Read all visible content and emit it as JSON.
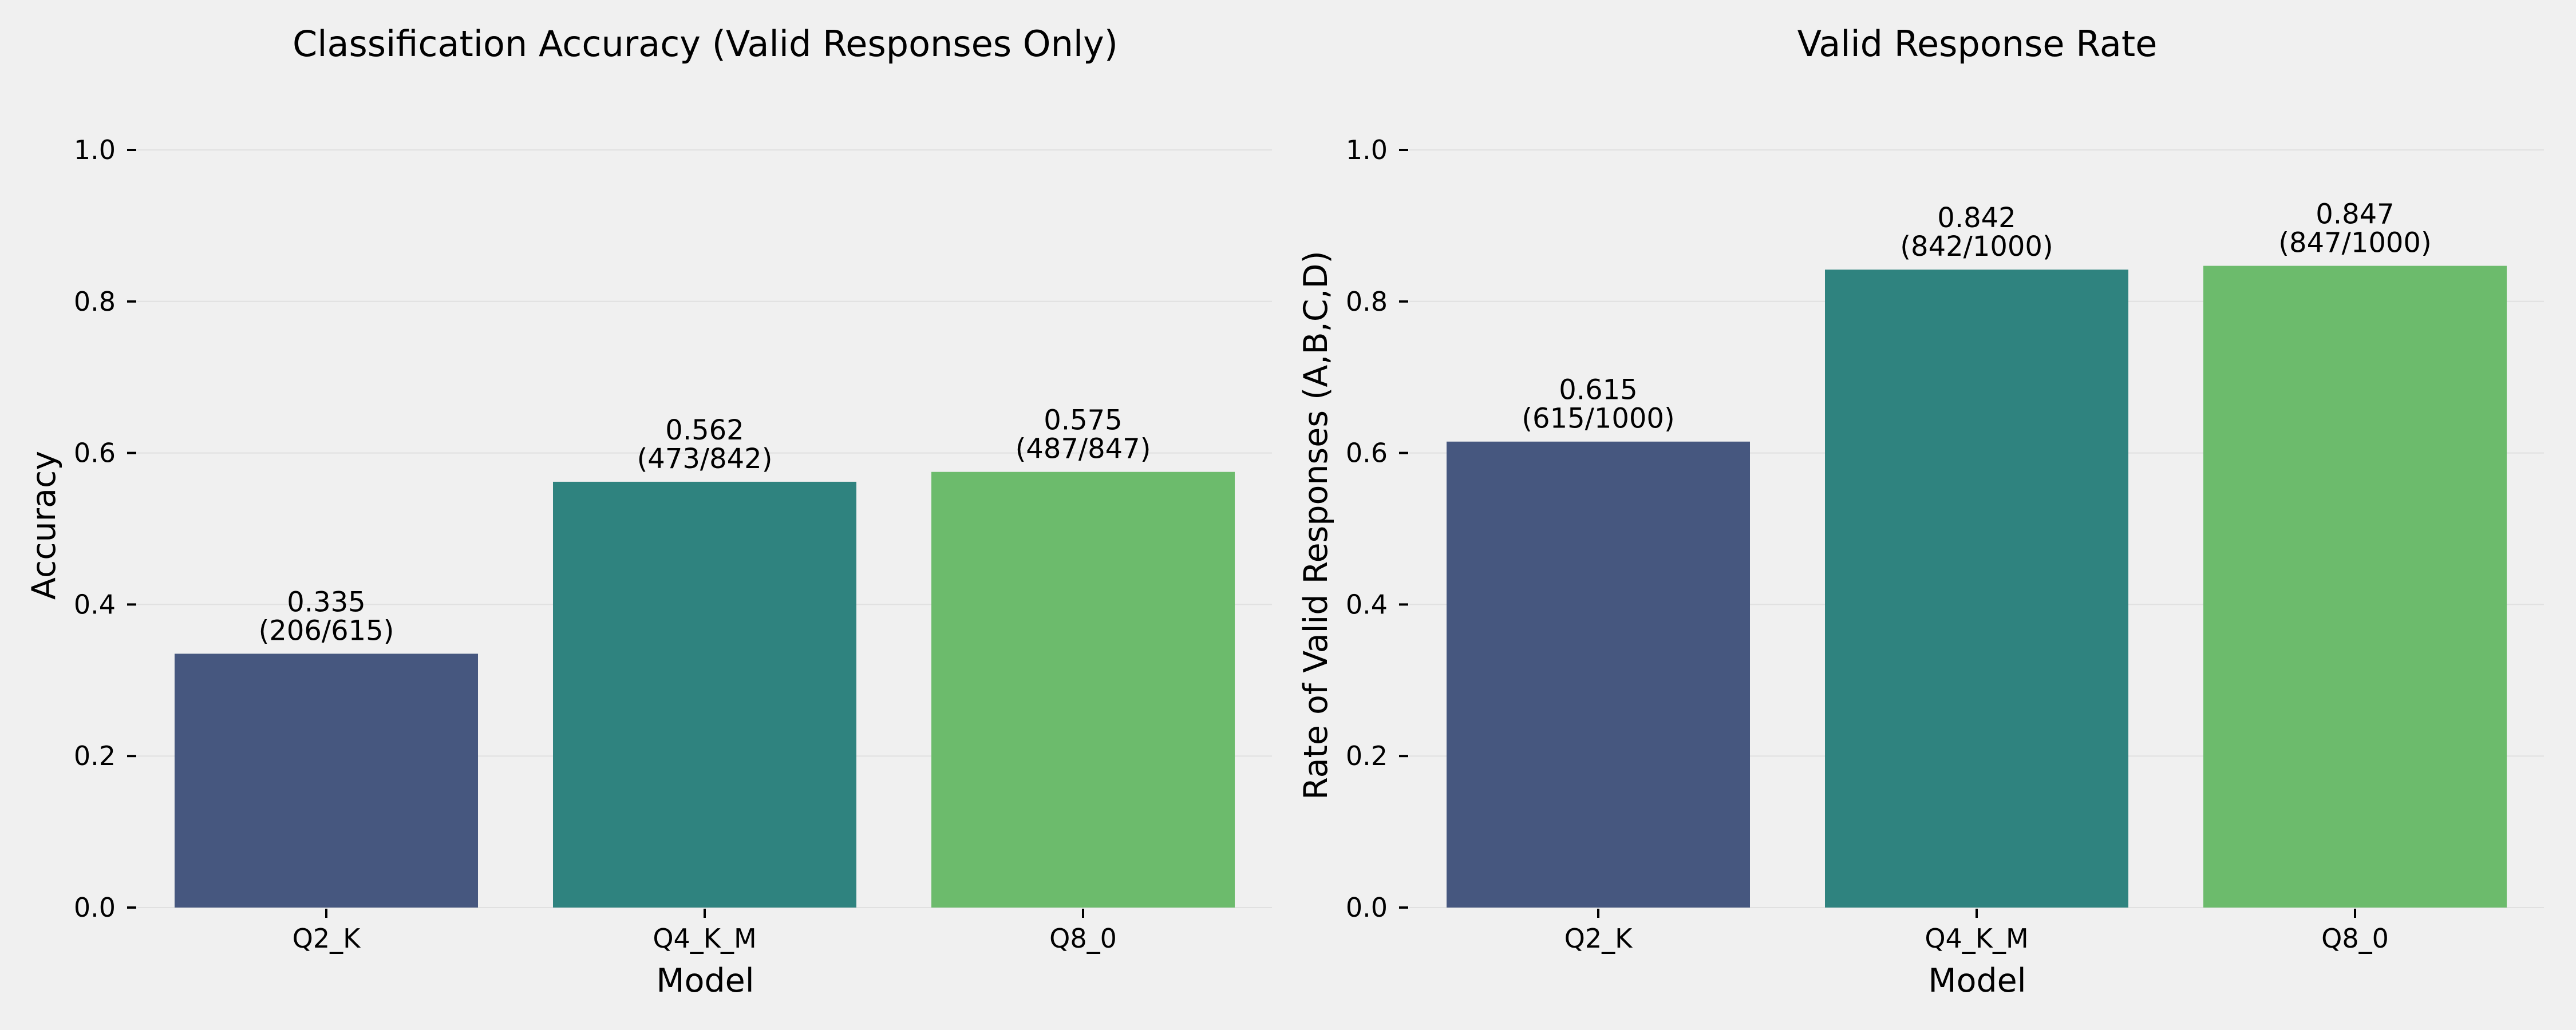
{
  "figure": {
    "background": "#f0f0f0",
    "grid": true,
    "grid_color": "#e0e0e0"
  },
  "chart_data": [
    {
      "type": "bar",
      "title": "Classification Accuracy (Valid Responses Only)",
      "xlabel": "Model",
      "ylabel": "Accuracy",
      "categories": [
        "Q2_K",
        "Q4_K_M",
        "Q8_0"
      ],
      "values": [
        0.335,
        0.562,
        0.575
      ],
      "value_labels": [
        "0.335",
        "0.562",
        "0.575"
      ],
      "count_labels": [
        "(206/615)",
        "(473/842)",
        "(487/847)"
      ],
      "colors": [
        "#46577f",
        "#2f837f",
        "#6cbb6c"
      ],
      "ylim": [
        0,
        1.0
      ],
      "yticks": [
        0.0,
        0.2,
        0.4,
        0.6,
        0.8,
        1.0
      ],
      "ytick_labels": [
        "0.0",
        "0.2",
        "0.4",
        "0.6",
        "0.8",
        "1.0"
      ],
      "grid": true,
      "legend": "none"
    },
    {
      "type": "bar",
      "title": "Valid Response Rate",
      "xlabel": "Model",
      "ylabel": "Rate of Valid Responses (A,B,C,D)",
      "categories": [
        "Q2_K",
        "Q4_K_M",
        "Q8_0"
      ],
      "values": [
        0.615,
        0.842,
        0.847
      ],
      "value_labels": [
        "0.615",
        "0.842",
        "0.847"
      ],
      "count_labels": [
        "(615/1000)",
        "(842/1000)",
        "(847/1000)"
      ],
      "colors": [
        "#46577f",
        "#2f837f",
        "#6cbb6c"
      ],
      "ylim": [
        0,
        1.0
      ],
      "yticks": [
        0.0,
        0.2,
        0.4,
        0.6,
        0.8,
        1.0
      ],
      "ytick_labels": [
        "0.0",
        "0.2",
        "0.4",
        "0.6",
        "0.8",
        "1.0"
      ],
      "grid": true,
      "legend": "none"
    }
  ]
}
